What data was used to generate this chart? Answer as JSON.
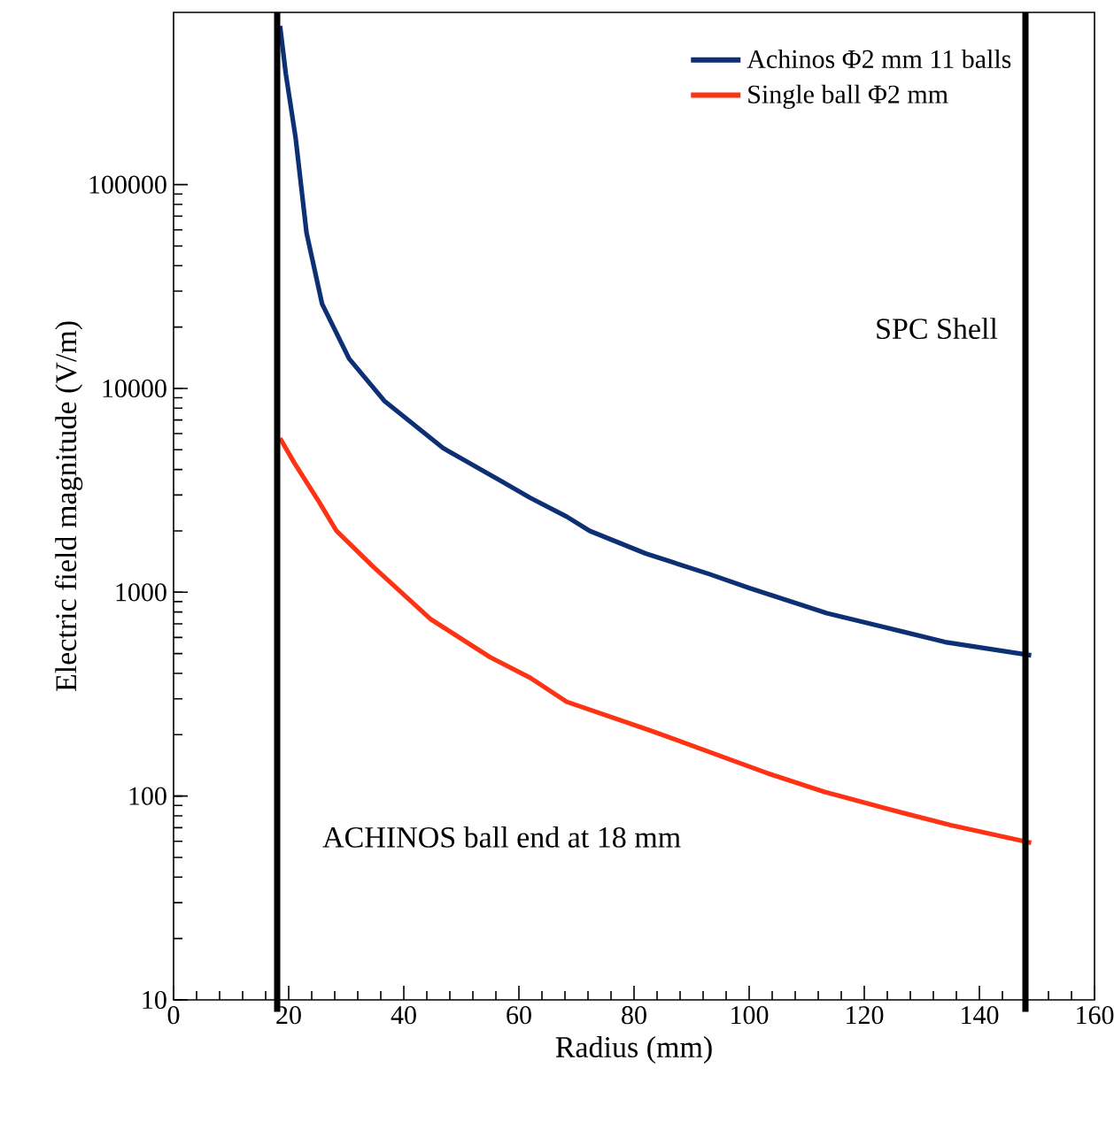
{
  "chart_data": {
    "type": "line",
    "xlabel": "Radius (mm)",
    "ylabel": "Electric field magnitude (V/m)",
    "xlim": [
      0,
      160
    ],
    "xticks": [
      0,
      20,
      40,
      60,
      80,
      100,
      120,
      140,
      160
    ],
    "ylim": [
      10,
      700000
    ],
    "yticks": [
      10,
      100,
      1000,
      10000,
      100000
    ],
    "log": "y",
    "legend": "top right",
    "grid": false,
    "marker": "none",
    "line_style": "solid",
    "series": [
      {
        "name": "Achinos Φ2 mm 11 balls",
        "color": "#0d2f73",
        "x": [
          18.5,
          19.5,
          21.2,
          23.1,
          25.8,
          30.5,
          36.6,
          46.8,
          57,
          62,
          68.3,
          72.3,
          82,
          93,
          100,
          113.5,
          123,
          134,
          149
        ],
        "values": [
          600000,
          350000,
          170000,
          58000,
          26000,
          14000,
          8700,
          5100,
          3500,
          2900,
          2350,
          2000,
          1550,
          1230,
          1050,
          790,
          680,
          570,
          490
        ]
      },
      {
        "name": "Single ball Φ2 mm",
        "color": "#ff3214",
        "x": [
          18.5,
          21,
          25.2,
          28.3,
          34.5,
          44.6,
          55,
          62,
          68.3,
          82.8,
          93,
          103,
          113,
          123.7,
          135,
          149
        ],
        "values": [
          5700,
          4300,
          2800,
          2000,
          1350,
          740,
          480,
          380,
          290,
          210,
          165,
          130,
          105,
          87,
          72,
          59
        ]
      }
    ],
    "ref_lines": [
      {
        "axis": "x",
        "value": 18,
        "label": "ACHINOS ball end at 18 mm",
        "color": "#000000"
      },
      {
        "axis": "x",
        "value": 148,
        "label": "SPC Shell",
        "color": "#000000"
      }
    ]
  }
}
